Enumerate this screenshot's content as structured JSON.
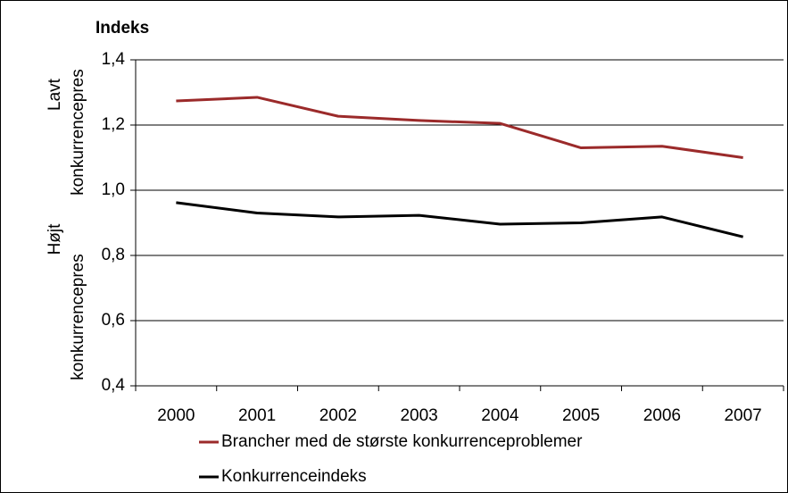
{
  "chart_data": {
    "type": "line",
    "title": "Indeks",
    "side_labels": [
      [
        "Lavt",
        "konkurrencepres"
      ],
      [
        "Højt",
        "konkurrencepres"
      ]
    ],
    "categories": [
      "2000",
      "2001",
      "2002",
      "2003",
      "2004",
      "2005",
      "2006",
      "2007"
    ],
    "series": [
      {
        "name": "Brancher med de største konkurrenceproblemer",
        "color": "#9b2a2a",
        "values": [
          1.274,
          1.285,
          1.227,
          1.214,
          1.205,
          1.13,
          1.135,
          1.1
        ]
      },
      {
        "name": "Konkurrenceindeks",
        "color": "#000000",
        "values": [
          0.962,
          0.93,
          0.918,
          0.923,
          0.896,
          0.9,
          0.918,
          0.857
        ]
      }
    ],
    "ylim": [
      0.4,
      1.4
    ],
    "yticks": [
      {
        "value": 0.4,
        "label": "0,4"
      },
      {
        "value": 0.6,
        "label": "0,6"
      },
      {
        "value": 0.8,
        "label": "0,8"
      },
      {
        "value": 1.0,
        "label": "1,0"
      },
      {
        "value": 1.2,
        "label": "1,2"
      },
      {
        "value": 1.4,
        "label": "1,4"
      }
    ],
    "grid": true,
    "legend": "bottom"
  }
}
